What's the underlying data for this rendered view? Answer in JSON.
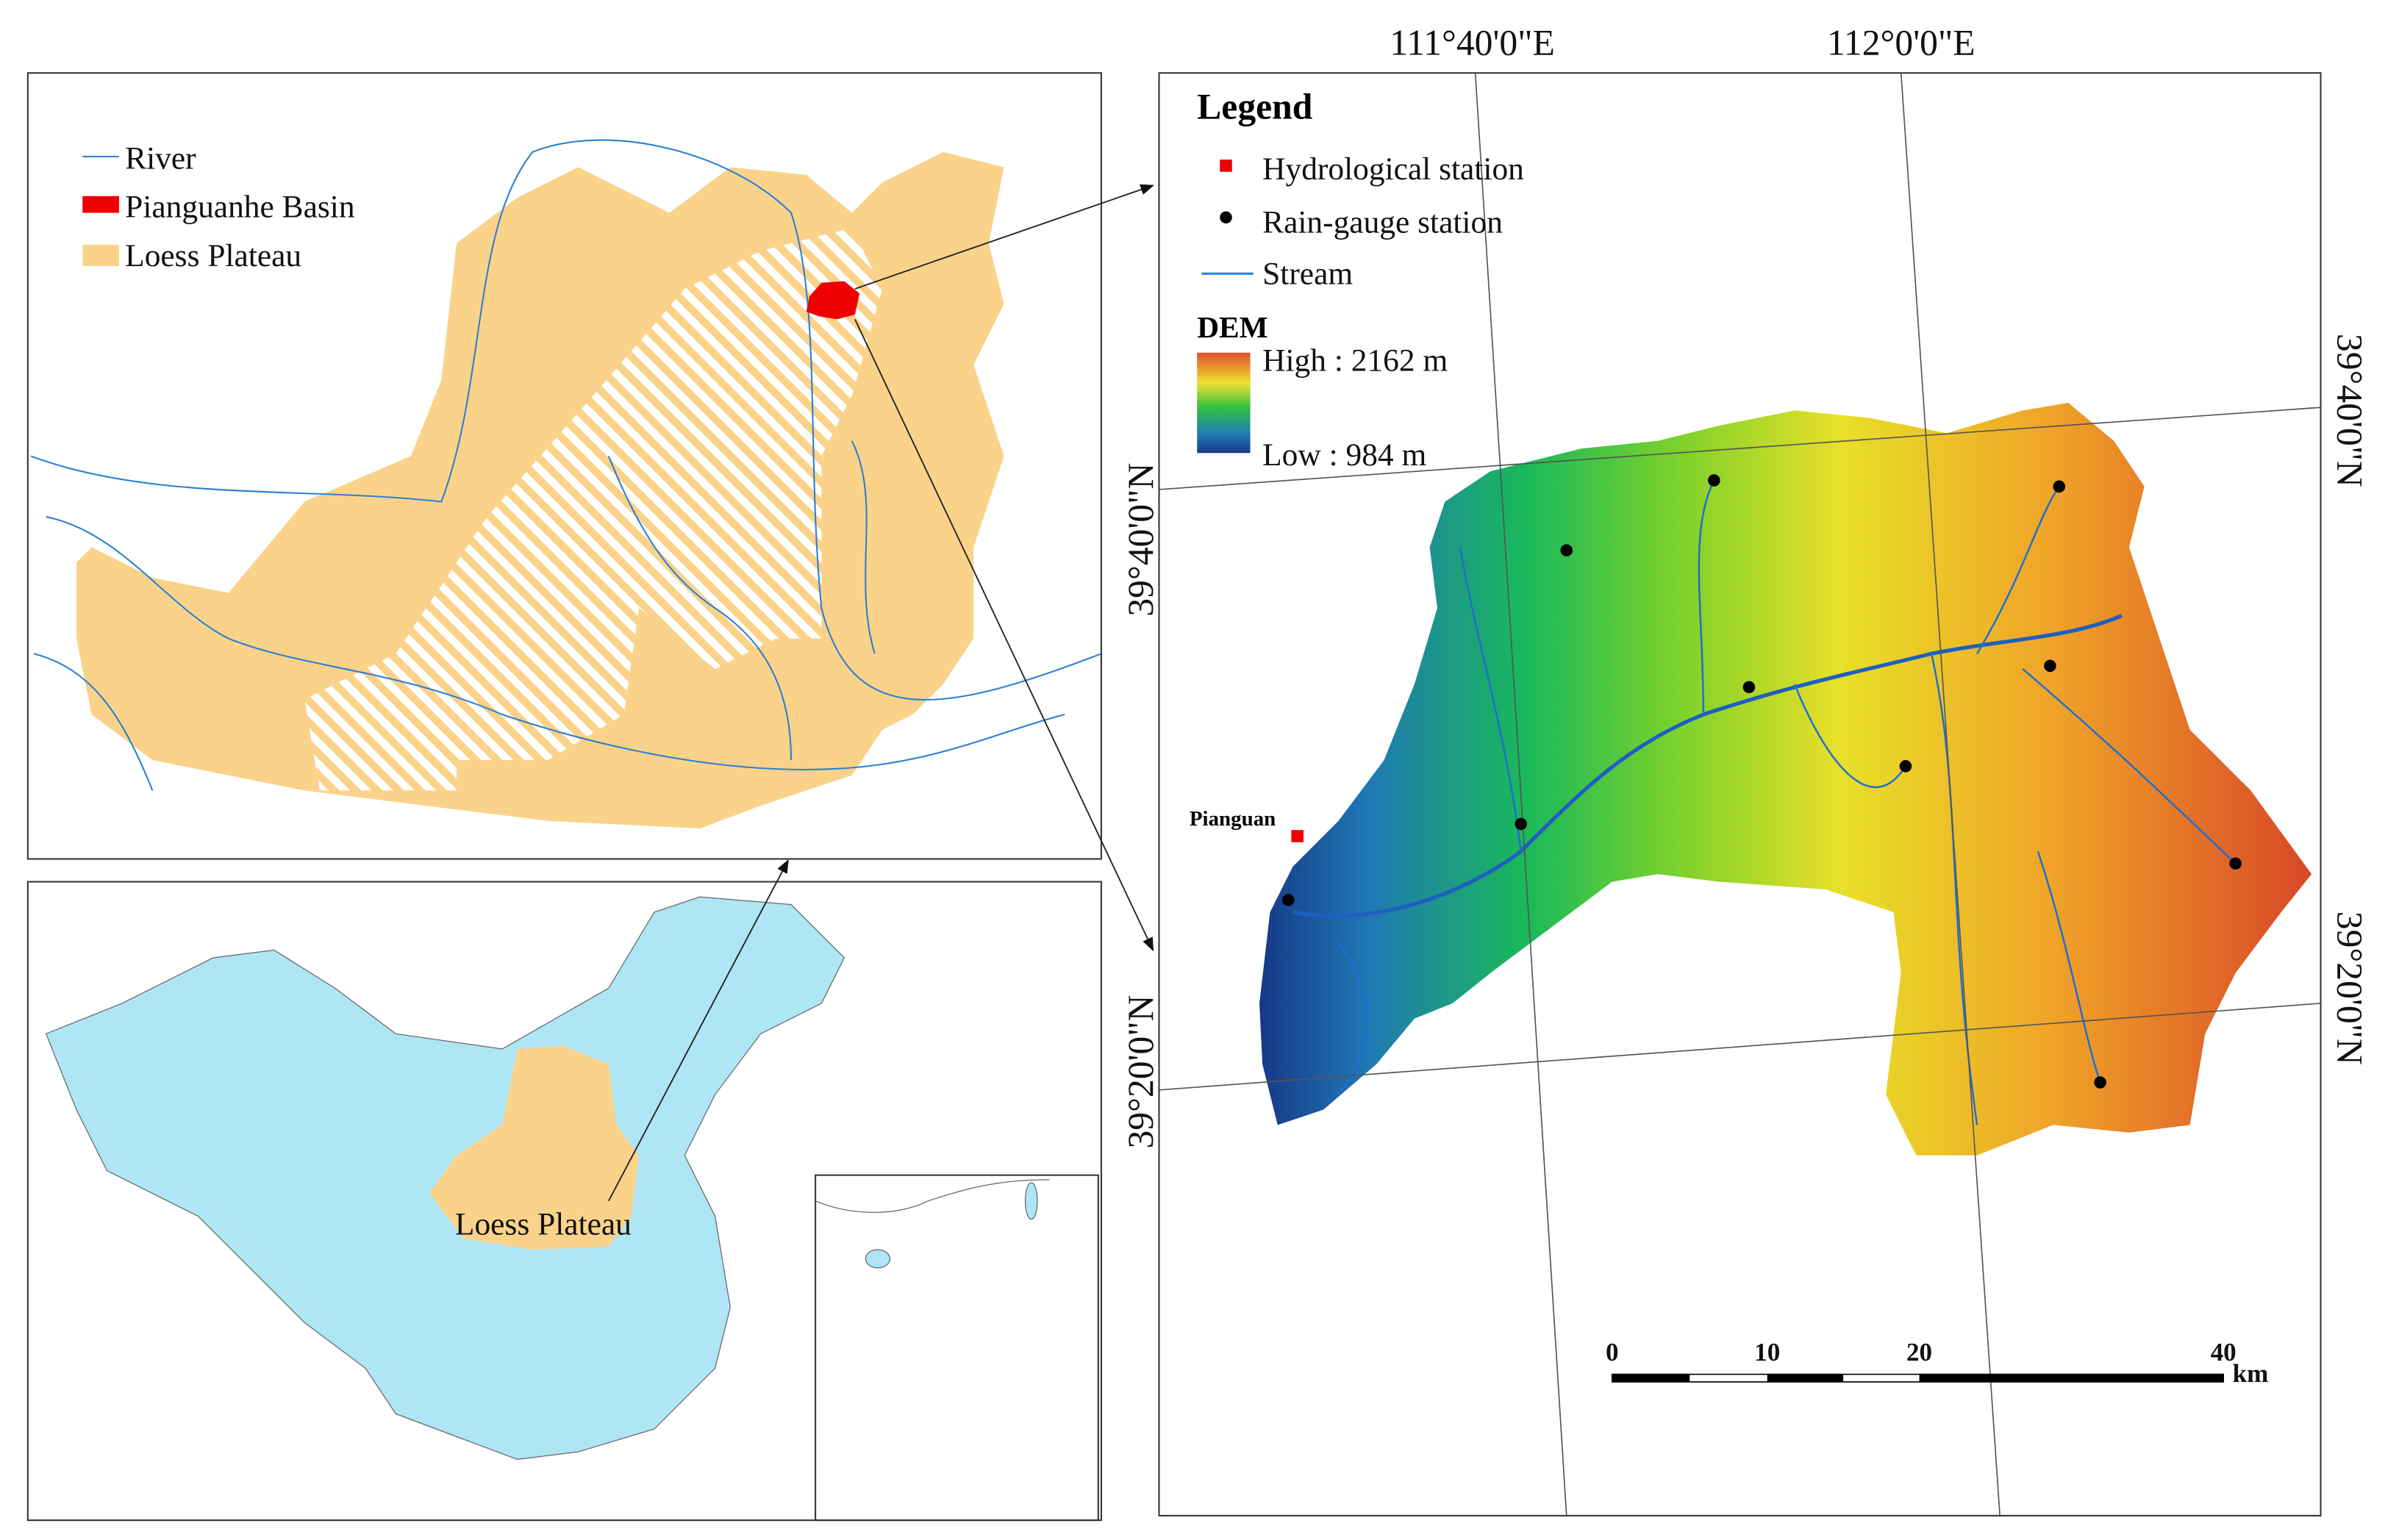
{
  "inset_legend": {
    "items": [
      "River",
      "Pianguanhe Basin",
      "Loess Plateau"
    ]
  },
  "china_map": {
    "label": "Loess Plateau"
  },
  "legend": {
    "title": "Legend",
    "items": [
      "Hydrological station",
      "Rain-gauge station",
      "Stream"
    ],
    "dem": {
      "title": "DEM",
      "high": "High : 2162 m",
      "low": "Low : 984 m"
    }
  },
  "stations": {
    "hydrological": "Pianguan"
  },
  "graticule": {
    "top": [
      "111°40'0\"E",
      "112°0'0\"E"
    ],
    "left": [
      "39°40'0\"N",
      "39°20'0\"N"
    ],
    "right": [
      "39°40'0\"N",
      "39°20'0\"N"
    ]
  },
  "scale_bar": {
    "labels": [
      "0",
      "10",
      "20",
      "40"
    ],
    "unit": "km"
  }
}
